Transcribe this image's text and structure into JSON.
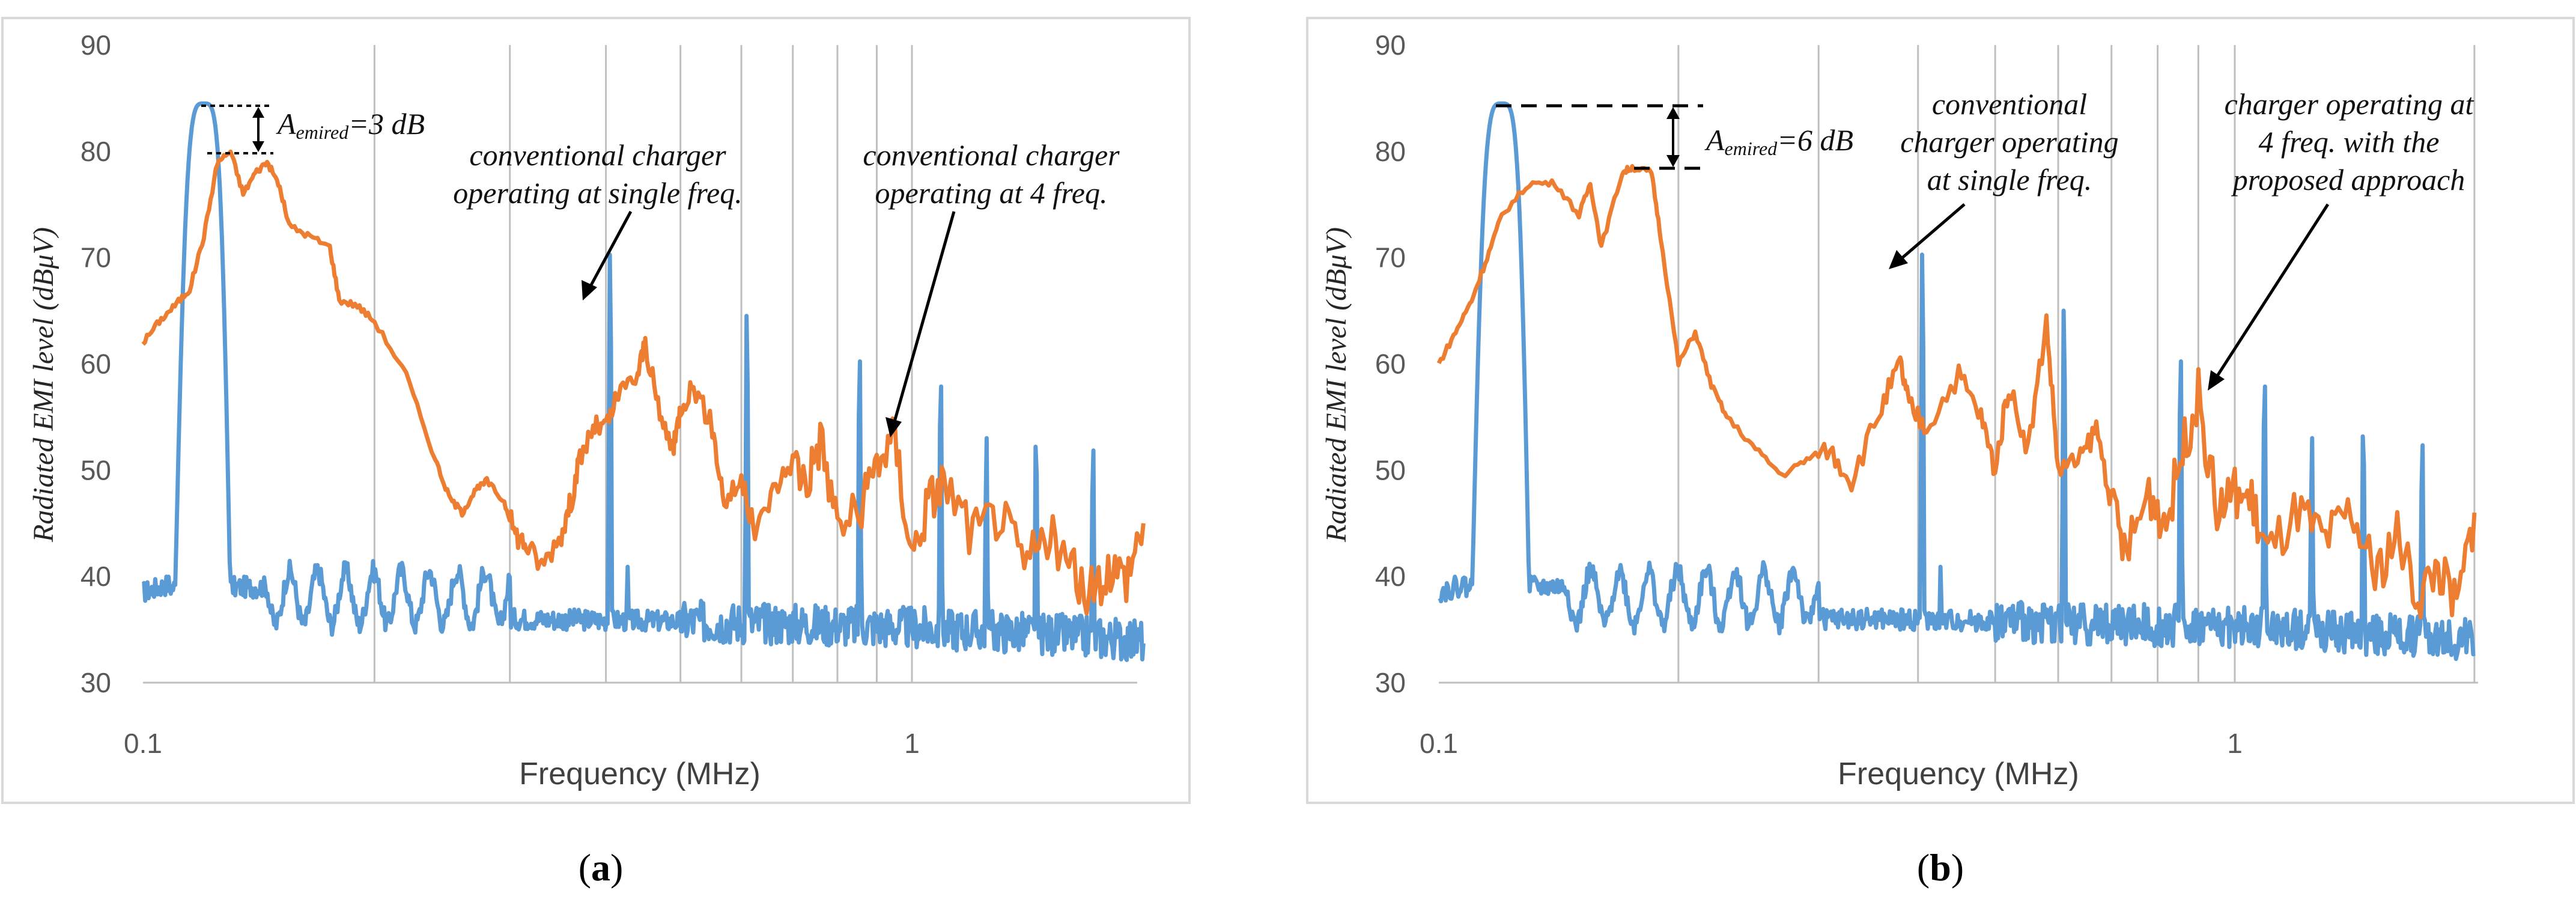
{
  "colors": {
    "conventional": "#5B9BD5",
    "four_freq": "#ED7D31",
    "grid": "#BFBFBF",
    "frame": "#D9D9D9"
  },
  "chart_data": [
    {
      "id": "a",
      "type": "line",
      "caption": {
        "open": "(",
        "letter": "a",
        "close": ")"
      },
      "xlabel": "Frequency (MHz)",
      "ylabel": "Radiated EMI level (dBμV)",
      "xscale": "log",
      "xlim": [
        0.1,
        2.0
      ],
      "ylim": [
        30,
        90
      ],
      "yticks": [
        30,
        40,
        50,
        60,
        70,
        80,
        90
      ],
      "xtick_labels": [
        "0.1",
        "1"
      ],
      "grid": "vertical log-decade lines",
      "series": [
        {
          "name": "conventional charger operating at single freq.",
          "color": "#5B9BD5",
          "peaks": [
            {
              "x": 0.12,
              "y": 84.5
            },
            {
              "x": 0.405,
              "y": 71
            },
            {
              "x": 0.427,
              "y": 41
            },
            {
              "x": 0.61,
              "y": 65.5
            },
            {
              "x": 0.855,
              "y": 61.5
            },
            {
              "x": 1.09,
              "y": 59.5
            },
            {
              "x": 1.25,
              "y": 53.5
            },
            {
              "x": 1.45,
              "y": 54
            },
            {
              "x": 1.72,
              "y": 53
            }
          ]
        },
        {
          "name": "conventional charger operating at 4 freq.",
          "color": "#ED7D31",
          "points": [
            [
              0.1,
              62
            ],
            [
              0.105,
              64
            ],
            [
              0.11,
              65.5
            ],
            [
              0.115,
              67
            ],
            [
              0.12,
              72
            ],
            [
              0.125,
              79
            ],
            [
              0.13,
              80
            ],
            [
              0.135,
              76
            ],
            [
              0.14,
              78
            ],
            [
              0.145,
              79
            ],
            [
              0.15,
              77
            ],
            [
              0.155,
              73
            ],
            [
              0.165,
              72
            ],
            [
              0.175,
              71
            ],
            [
              0.18,
              66
            ],
            [
              0.19,
              65.5
            ],
            [
              0.2,
              64
            ],
            [
              0.22,
              59
            ],
            [
              0.24,
              51
            ],
            [
              0.25,
              47.5
            ],
            [
              0.26,
              46
            ],
            [
              0.27,
              48
            ],
            [
              0.28,
              49
            ],
            [
              0.295,
              47
            ],
            [
              0.305,
              44
            ],
            [
              0.315,
              43
            ],
            [
              0.33,
              41
            ],
            [
              0.35,
              44
            ],
            [
              0.36,
              47
            ],
            [
              0.37,
              51
            ],
            [
              0.385,
              54
            ],
            [
              0.4,
              54
            ],
            [
              0.415,
              57
            ],
            [
              0.44,
              59
            ],
            [
              0.45,
              62
            ],
            [
              0.47,
              55
            ],
            [
              0.49,
              52
            ],
            [
              0.5,
              56
            ],
            [
              0.52,
              58
            ],
            [
              0.55,
              54
            ],
            [
              0.57,
              47
            ],
            [
              0.6,
              49
            ],
            [
              0.625,
              44
            ],
            [
              0.66,
              48
            ],
            [
              0.7,
              51
            ],
            [
              0.73,
              49
            ],
            [
              0.76,
              53
            ],
            [
              0.8,
              45
            ],
            [
              0.86,
              46
            ],
            [
              0.9,
              51
            ],
            [
              0.95,
              53
            ],
            [
              1.0,
              42
            ],
            [
              1.05,
              47
            ],
            [
              1.1,
              49
            ],
            [
              1.2,
              44
            ],
            [
              1.3,
              46
            ],
            [
              1.4,
              41
            ],
            [
              1.5,
              44
            ],
            [
              1.6,
              41
            ],
            [
              1.7,
              38
            ],
            [
              1.8,
              41
            ],
            [
              1.9,
              40
            ],
            [
              2.0,
              45
            ]
          ]
        }
      ],
      "annotations": [
        {
          "text": "A",
          "sub": "emired",
          "rest": "=3 dB"
        },
        {
          "text": "conventional charger",
          "line2": "operating at single freq."
        },
        {
          "text": "conventional charger",
          "line2": "operating at 4 freq."
        }
      ]
    },
    {
      "id": "b",
      "type": "line",
      "caption": {
        "open": "(",
        "letter": "b",
        "close": ")"
      },
      "xlabel": "Frequency (MHz)",
      "ylabel": "Radiated EMI level (dBμV)",
      "xscale": "log",
      "xlim": [
        0.1,
        2.0
      ],
      "ylim": [
        30,
        90
      ],
      "yticks": [
        30,
        40,
        50,
        60,
        70,
        80,
        90
      ],
      "xtick_labels": [
        "0.1",
        "1"
      ],
      "grid": "vertical log-decade lines",
      "series": [
        {
          "name": "conventional charger operating at single freq.",
          "color": "#5B9BD5",
          "peaks": [
            {
              "x": 0.12,
              "y": 84.5
            },
            {
              "x": 0.405,
              "y": 71
            },
            {
              "x": 0.427,
              "y": 41
            },
            {
              "x": 0.61,
              "y": 66
            },
            {
              "x": 0.855,
              "y": 61.5
            },
            {
              "x": 1.09,
              "y": 59.5
            },
            {
              "x": 1.25,
              "y": 53.5
            },
            {
              "x": 1.45,
              "y": 55
            },
            {
              "x": 1.72,
              "y": 53.5
            }
          ]
        },
        {
          "name": "charger operating at 4 freq. with the proposed approach",
          "color": "#ED7D31",
          "points": [
            [
              0.1,
              60
            ],
            [
              0.105,
              63
            ],
            [
              0.11,
              66
            ],
            [
              0.115,
              70
            ],
            [
              0.12,
              74
            ],
            [
              0.13,
              77
            ],
            [
              0.14,
              77
            ],
            [
              0.15,
              74
            ],
            [
              0.155,
              77
            ],
            [
              0.16,
              71
            ],
            [
              0.17,
              78
            ],
            [
              0.175,
              78.5
            ],
            [
              0.185,
              78
            ],
            [
              0.19,
              72
            ],
            [
              0.2,
              60
            ],
            [
              0.21,
              63
            ],
            [
              0.22,
              58
            ],
            [
              0.23,
              55
            ],
            [
              0.25,
              52
            ],
            [
              0.27,
              49.5
            ],
            [
              0.29,
              51
            ],
            [
              0.31,
              52
            ],
            [
              0.33,
              49
            ],
            [
              0.36,
              56
            ],
            [
              0.38,
              60
            ],
            [
              0.39,
              56
            ],
            [
              0.41,
              54
            ],
            [
              0.45,
              59
            ],
            [
              0.48,
              55
            ],
            [
              0.5,
              50
            ],
            [
              0.52,
              58
            ],
            [
              0.55,
              52
            ],
            [
              0.58,
              64
            ],
            [
              0.6,
              50
            ],
            [
              0.64,
              51
            ],
            [
              0.67,
              54
            ],
            [
              0.7,
              47
            ],
            [
              0.73,
              42
            ],
            [
              0.78,
              48
            ],
            [
              0.82,
              45
            ],
            [
              0.86,
              52
            ],
            [
              0.9,
              57
            ],
            [
              0.95,
              46
            ],
            [
              1.0,
              48
            ],
            [
              1.05,
              47
            ],
            [
              1.1,
              42
            ],
            [
              1.2,
              46
            ],
            [
              1.3,
              43
            ],
            [
              1.4,
              46
            ],
            [
              1.5,
              40
            ],
            [
              1.6,
              44
            ],
            [
              1.7,
              38
            ],
            [
              1.8,
              41
            ],
            [
              1.9,
              37
            ],
            [
              2.0,
              46
            ]
          ]
        }
      ],
      "annotations": [
        {
          "text": "A",
          "sub": "emired",
          "rest": "=6 dB"
        },
        {
          "text": "conventional",
          "line2": "charger operating",
          "line3": "at single freq."
        },
        {
          "text": "charger operating at",
          "line2": "4 freq. with the",
          "line3": "proposed approach"
        }
      ]
    }
  ]
}
